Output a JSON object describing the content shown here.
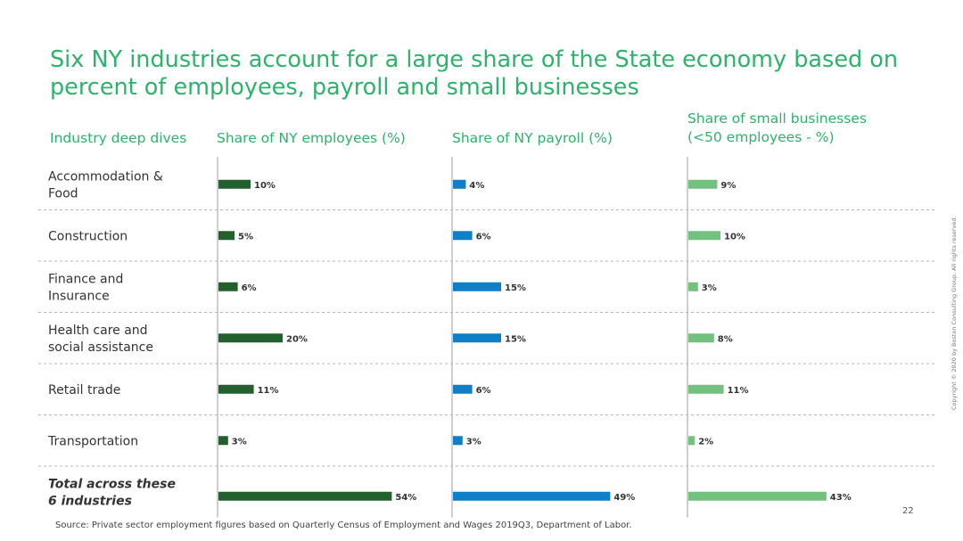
{
  "title": "Six NY industries account for a large share of the State economy based on percent of employees, payroll and small businesses",
  "row_header": "Industry deep dives",
  "columns": [
    {
      "header": "Share of NY employees (%)",
      "color": "#22612e"
    },
    {
      "header": "Share of NY payroll (%)",
      "color": "#0f7fc8"
    },
    {
      "header": "Share of small businesses (<50 employees - %)",
      "header_line1": "Share of small businesses",
      "header_line2": "(<50 employees - %)",
      "color": "#72c17f"
    }
  ],
  "chart_data": {
    "type": "bar",
    "orientation": "horizontal",
    "categories": [
      [
        "Accommodation &",
        "Food"
      ],
      [
        "Construction"
      ],
      [
        "Finance and",
        "Insurance"
      ],
      [
        "Health care and",
        "social assistance"
      ],
      [
        "Retail trade"
      ],
      [
        "Transportation"
      ],
      [
        "Total across these",
        "6 industries"
      ]
    ],
    "series": [
      {
        "name": "Share of NY employees (%)",
        "values": [
          10,
          5,
          6,
          20,
          11,
          3,
          54
        ],
        "labels": [
          "10%",
          "5%",
          "6%",
          "20%",
          "11%",
          "3%",
          "54%"
        ],
        "color": "#22612e"
      },
      {
        "name": "Share of NY payroll (%)",
        "values": [
          4,
          6,
          15,
          15,
          6,
          3,
          49
        ],
        "labels": [
          "4%",
          "6%",
          "15%",
          "15%",
          "6%",
          "3%",
          "49%"
        ],
        "color": "#0f7fc8"
      },
      {
        "name": "Share of small businesses (<50 employees - %)",
        "values": [
          9,
          10,
          3,
          8,
          11,
          2,
          43
        ],
        "labels": [
          "9%",
          "10%",
          "3%",
          "8%",
          "11%",
          "2%",
          "43%"
        ],
        "color": "#72c17f"
      }
    ],
    "total_row_emphasis": true
  },
  "footnote": "Source: Private sector employment figures based on Quarterly Census of Employment and Wages 2019Q3, Department of Labor.",
  "page_number": "22",
  "copyright": "Copyright © 2020 by Boston Consulting Group. All rights reserved."
}
